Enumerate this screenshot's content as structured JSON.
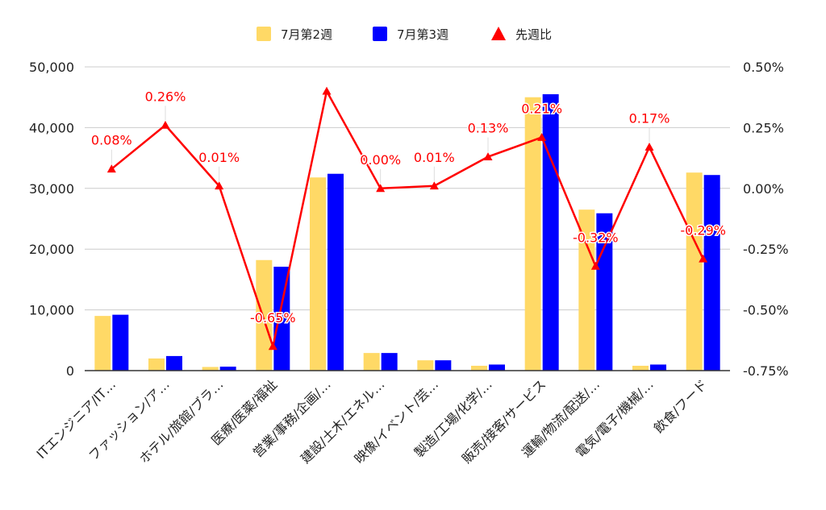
{
  "chart_data": {
    "type": "bar",
    "categories": [
      "ITエンジニア/IT…",
      "ファッション/ア…",
      "ホテル/旅館/ブラ…",
      "医療/医薬/福祉",
      "営業/事務/企画/…",
      "建設/土木/エネル…",
      "映像/イベント/芸…",
      "製造/工場/化学/…",
      "販売/接客/サービス",
      "運輸/物流/配送/…",
      "電気/電子/機械/…",
      "飲食/フード"
    ],
    "series": [
      {
        "name": "7月第2週",
        "type": "bar",
        "axis": "left",
        "color": "#FFD966",
        "values": [
          9000,
          2000,
          600,
          18200,
          31800,
          2900,
          1700,
          800,
          45000,
          26500,
          800,
          32600
        ]
      },
      {
        "name": "7月第3週",
        "type": "bar",
        "axis": "left",
        "color": "#0000FF",
        "values": [
          9200,
          2400,
          650,
          17100,
          32400,
          2900,
          1700,
          1000,
          45500,
          25900,
          1000,
          32200
        ]
      },
      {
        "name": "先週比",
        "type": "line",
        "axis": "right",
        "color": "#FF0000",
        "marker": "triangle",
        "values": [
          0.08,
          0.26,
          0.01,
          -0.65,
          0.4,
          0.0,
          0.01,
          0.13,
          0.21,
          -0.32,
          0.17,
          -0.29
        ],
        "labels": [
          "0.08%",
          "0.26%",
          "0.01%",
          "-0.65%",
          null,
          "0.00%",
          "0.01%",
          "0.13%",
          "0.21%",
          "-0.32%",
          "0.17%",
          "-0.29%"
        ]
      }
    ],
    "left_axis": {
      "ylim": [
        0,
        50000
      ],
      "ticks": [
        "0",
        "10,000",
        "20,000",
        "30,000",
        "40,000",
        "50,000"
      ]
    },
    "right_axis": {
      "ylim": [
        -0.75,
        0.5
      ],
      "ticks": [
        "-0.75%",
        "-0.50%",
        "-0.25%",
        "0.00%",
        "0.25%",
        "0.50%"
      ]
    },
    "grid": true,
    "legend_position": "top-center"
  }
}
